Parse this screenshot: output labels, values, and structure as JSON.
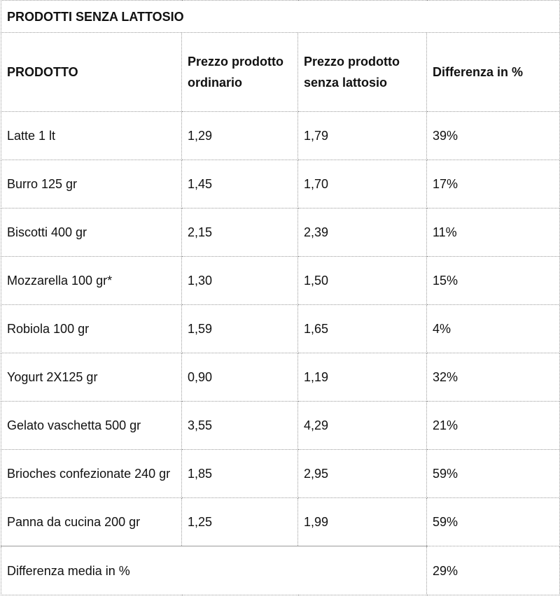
{
  "table": {
    "title": "PRODOTTI SENZA LATTOSIO",
    "headers": {
      "product": "PRODOTTO",
      "ordinary_price": "Prezzo prodotto ordinario",
      "lactose_free_price": "Prezzo prodotto senza lattosio",
      "difference": "Differenza in %"
    },
    "rows": [
      {
        "product": "Latte 1 lt",
        "ordinary": "1,29",
        "lactose_free": "1,79",
        "diff": "39%"
      },
      {
        "product": "Burro 125 gr",
        "ordinary": "1,45",
        "lactose_free": "1,70",
        "diff": "17%"
      },
      {
        "product": "Biscotti 400 gr",
        "ordinary": "2,15",
        "lactose_free": "2,39",
        "diff": "11%"
      },
      {
        "product": "Mozzarella 100 gr*",
        "ordinary": "1,30",
        "lactose_free": "1,50",
        "diff": "15%"
      },
      {
        "product": "Robiola 100 gr",
        "ordinary": "1,59",
        "lactose_free": "1,65",
        "diff": "4%"
      },
      {
        "product": "Yogurt 2X125 gr",
        "ordinary": "0,90",
        "lactose_free": "1,19",
        "diff": "32%"
      },
      {
        "product": "Gelato vaschetta 500 gr",
        "ordinary": "3,55",
        "lactose_free": "4,29",
        "diff": "21%"
      },
      {
        "product": "Brioches confezionate 240 gr",
        "ordinary": "1,85",
        "lactose_free": "2,95",
        "diff": "59%"
      },
      {
        "product": "Panna da cucina 200 gr",
        "ordinary": "1,25",
        "lactose_free": "1,99",
        "diff": "59%"
      }
    ],
    "footer": {
      "label": "Differenza media in %",
      "value": "29%"
    }
  }
}
